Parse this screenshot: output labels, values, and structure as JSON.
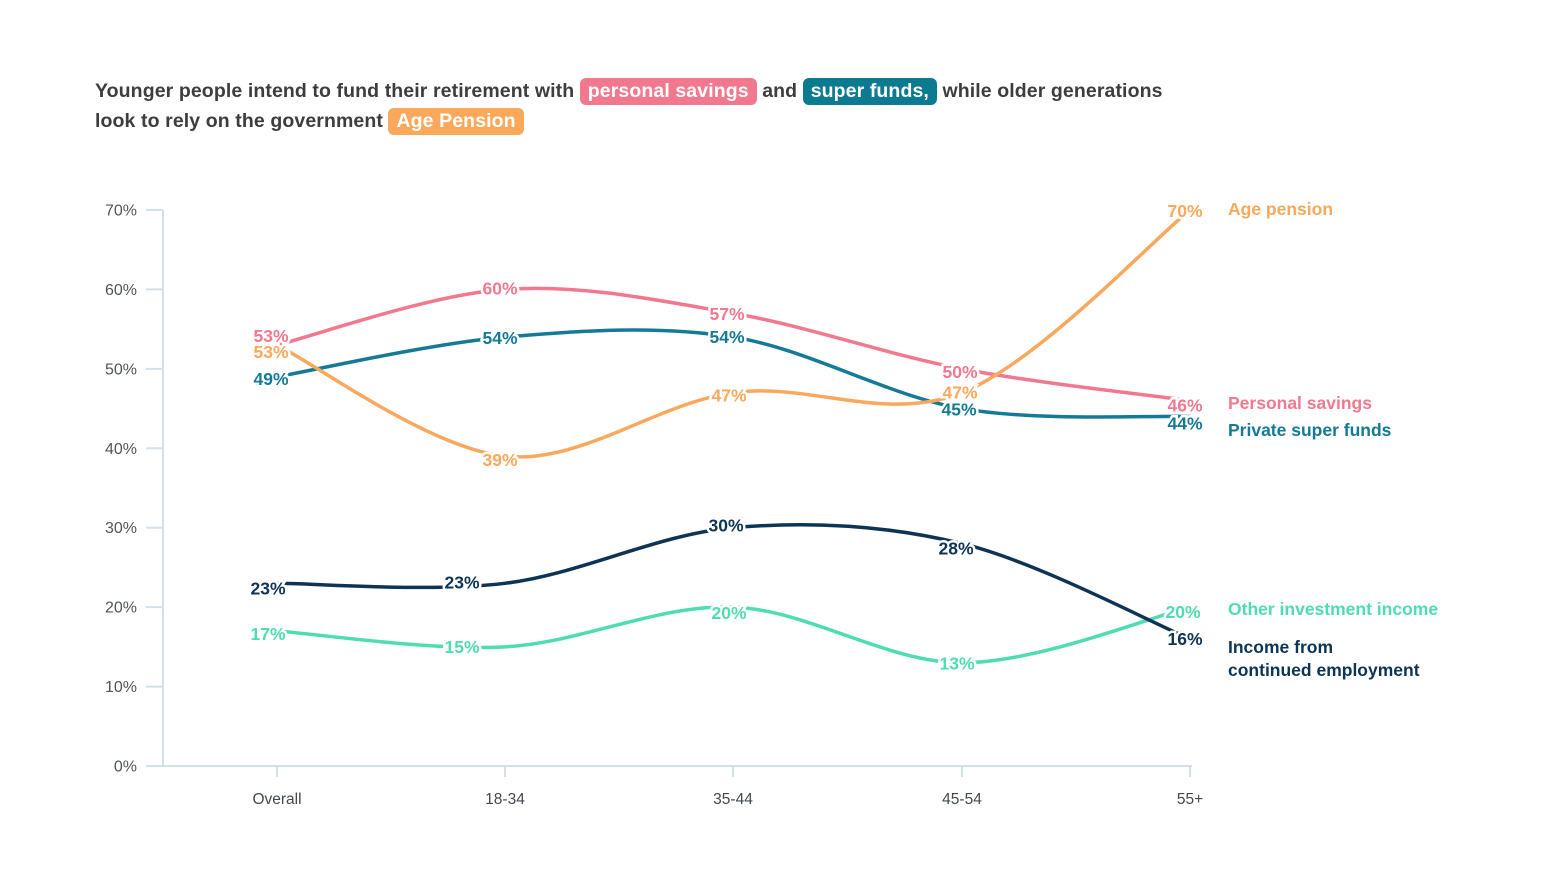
{
  "title": {
    "segments": [
      {
        "text": "Younger people intend to fund their retirement with "
      },
      {
        "text": "personal savings",
        "highlight": "pink"
      },
      {
        "text": " and "
      },
      {
        "text": "super funds,",
        "highlight": "teal"
      },
      {
        "text": " while older generations"
      },
      {
        "break": true
      },
      {
        "text": "look to rely on the government "
      },
      {
        "text": "Age Pension",
        "highlight": "orange"
      }
    ]
  },
  "colors": {
    "pink": "#F0798F",
    "orange": "#F9A85C",
    "teal": "#147A96",
    "teal_pill": "#0E7A90",
    "navy": "#0E3455",
    "mint": "#4FDCB2",
    "axis": "#D4E0E7",
    "y_tick_text": "#515558",
    "x_tick_text": "#43484E",
    "title_text": "#3D3D3D"
  },
  "chart_data": {
    "type": "line",
    "categories": [
      "Overall",
      "18-34",
      "35-44",
      "45-54",
      "55+"
    ],
    "series": [
      {
        "name": "Age pension",
        "values": [
          53,
          39,
          47,
          47,
          70
        ],
        "color": "#F9A85C",
        "legend_lines": [
          "Age pension"
        ]
      },
      {
        "name": "Personal savings",
        "values": [
          53,
          60,
          57,
          50,
          46
        ],
        "color": "#F0798F",
        "legend_lines": [
          "Personal savings"
        ]
      },
      {
        "name": "Private super funds",
        "values": [
          49,
          54,
          54,
          45,
          44
        ],
        "color": "#147A96",
        "legend_lines": [
          "Private super funds"
        ]
      },
      {
        "name": "Other investment income",
        "values": [
          17,
          15,
          20,
          13,
          20
        ],
        "color": "#4FDCB2",
        "legend_lines": [
          "Other investment income"
        ]
      },
      {
        "name": "Income from continued employment",
        "values": [
          23,
          23,
          30,
          28,
          16
        ],
        "color": "#0E3455",
        "legend_lines": [
          "Income from",
          "continued employment"
        ]
      }
    ],
    "data_label_format": "{value}%",
    "ylim": [
      0,
      70
    ],
    "ytick_step": 10,
    "ytick_format": "{value}%",
    "grid": false,
    "legend_position": "right-of-line-ends"
  }
}
